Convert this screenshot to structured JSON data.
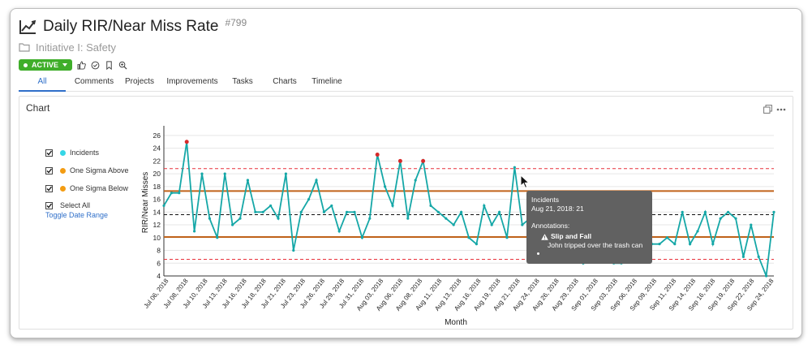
{
  "header": {
    "title": "Daily RIR/Near Miss Rate",
    "tag": "#799",
    "subtitle": "Initiative I: Safety",
    "status": "ACTIVE"
  },
  "tabs": [
    {
      "label": "All",
      "active": true
    },
    {
      "label": "Comments"
    },
    {
      "label": "Projects"
    },
    {
      "label": "Improvements"
    },
    {
      "label": "Tasks"
    },
    {
      "label": "Charts"
    },
    {
      "label": "Timeline"
    }
  ],
  "card": {
    "title": "Chart"
  },
  "legend": {
    "items": [
      "Incidents",
      "One Sigma Above",
      "One Sigma Below",
      "Select All"
    ],
    "toggle": "Toggle Date Range"
  },
  "colors": {
    "accent": "#2f6fc9",
    "active": "#3fae2a",
    "incidents": "#15a7a7",
    "incidents_legend": "#35d6e6",
    "sigma": "#f39c12",
    "sigma_line": "#c0631a",
    "control_limit": "#e8323c",
    "outlier": "#d62a2a",
    "mean": "#111111"
  },
  "tooltip": {
    "series": "Incidents",
    "point": "Aug 21, 2018: 21",
    "annotations_label": "Annotations:",
    "annotation_title": "Slip and Fall",
    "annotation_text": "John tripped over the trash can"
  },
  "chart_data": {
    "type": "line",
    "title": "",
    "xlabel": "Month",
    "ylabel": "RIR/Near Misses",
    "ylim": [
      4,
      27
    ],
    "yticks": [
      4,
      6,
      8,
      10,
      12,
      14,
      16,
      18,
      20,
      22,
      24,
      26
    ],
    "x_start": "Jul 05, 2018",
    "xtick_labels": [
      "Jul 06, 2018",
      "Jul 08, 2018",
      "Jul 10, 2018",
      "Jul 13, 2018",
      "Jul 16, 2018",
      "Jul 18, 2018",
      "Jul 21, 2018",
      "Jul 23, 2018",
      "Jul 26, 2018",
      "Jul 29, 2018",
      "Jul 31, 2018",
      "Aug 03, 2018",
      "Aug 06, 2018",
      "Aug 08, 2018",
      "Aug 11, 2018",
      "Aug 13, 2018",
      "Aug 16, 2018",
      "Aug 19, 2018",
      "Aug 21, 2018",
      "Aug 24, 2018",
      "Aug 26, 2018",
      "Aug 29, 2018",
      "Sep 01, 2018",
      "Sep 03, 2018",
      "Sep 06, 2018",
      "Sep 09, 2018",
      "Sep 11, 2018",
      "Sep 14, 2018",
      "Sep 16, 2018",
      "Sep 19, 2018",
      "Sep 22, 2018",
      "Sep 24, 2018"
    ],
    "series": [
      {
        "name": "Incidents",
        "values": [
          15,
          17,
          17,
          25,
          11,
          20,
          13,
          10,
          20,
          12,
          13,
          19,
          14,
          14,
          15,
          13,
          20,
          8,
          14,
          16,
          19,
          14,
          15,
          11,
          14,
          14,
          10,
          13,
          23,
          18,
          15,
          22,
          13,
          19,
          22,
          15,
          14,
          13,
          12,
          14,
          10,
          9,
          15,
          12,
          14,
          10,
          21,
          12,
          13,
          10,
          12,
          11,
          10,
          8,
          11,
          6,
          8,
          12,
          12,
          6,
          6,
          11,
          13,
          12,
          9,
          9,
          10,
          9,
          14,
          9,
          11,
          14,
          9,
          13,
          14,
          13,
          7,
          12,
          7,
          4,
          14
        ],
        "outlier_indices": [
          3,
          28,
          31,
          34
        ]
      },
      {
        "name": "One Sigma Above",
        "values": [
          17.3
        ]
      },
      {
        "name": "One Sigma Below",
        "values": [
          10.1
        ]
      }
    ],
    "mean": 13.6,
    "ucl": 20.8,
    "lcl": 6.6,
    "grid": "horizontal",
    "legend_position": "left"
  }
}
